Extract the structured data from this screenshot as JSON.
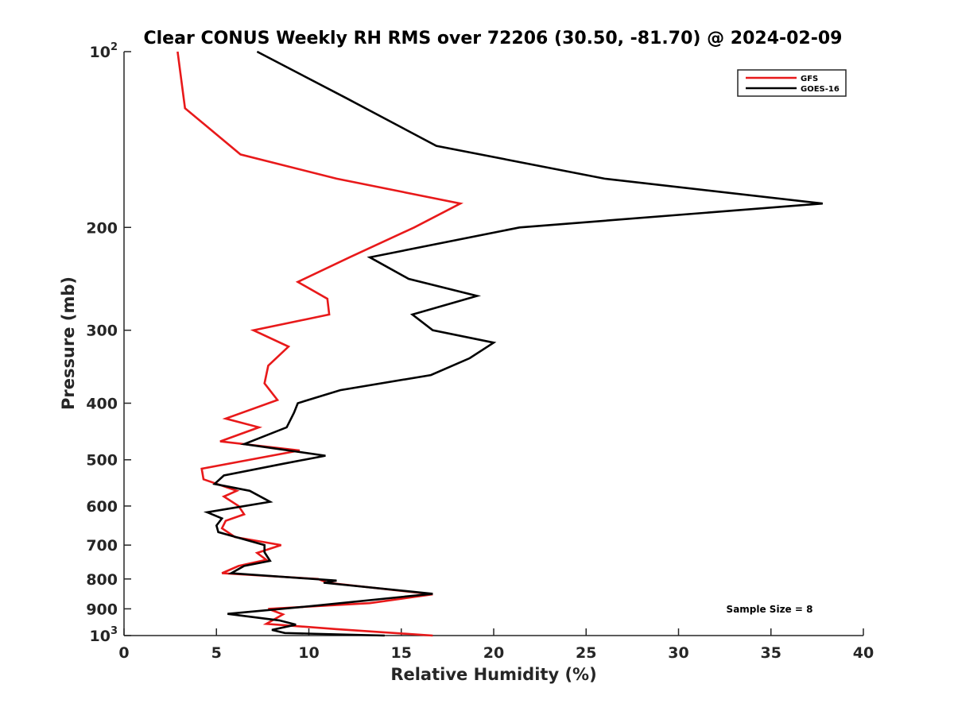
{
  "chart_data": {
    "type": "line",
    "title": "Clear CONUS Weekly RH RMS over 72206 (30.50, -81.70) @ 2024-02-09",
    "xlabel": "Relative Humidity (%)",
    "ylabel": "Pressure (mb)",
    "xlim": [
      0,
      40
    ],
    "ylim": [
      100,
      1000
    ],
    "y_scale": "log",
    "y_reversed": true,
    "x_ticks": [
      0,
      5,
      10,
      15,
      20,
      25,
      30,
      35,
      40
    ],
    "x_tick_labels": [
      "0",
      "5",
      "10",
      "15",
      "20",
      "25",
      "30",
      "35",
      "40"
    ],
    "y_ticks": [
      100,
      200,
      300,
      400,
      500,
      600,
      700,
      800,
      900,
      1000
    ],
    "y_tick_labels": [
      {
        "base": "10",
        "exp": "2"
      },
      {
        "base": "200",
        "exp": ""
      },
      {
        "base": "300",
        "exp": ""
      },
      {
        "base": "400",
        "exp": ""
      },
      {
        "base": "500",
        "exp": ""
      },
      {
        "base": "600",
        "exp": ""
      },
      {
        "base": "700",
        "exp": ""
      },
      {
        "base": "800",
        "exp": ""
      },
      {
        "base": "900",
        "exp": ""
      },
      {
        "base": "10",
        "exp": "3"
      }
    ],
    "legend_position": "top-right",
    "annotation": "Sample Size = 8",
    "series": [
      {
        "name": "GFS",
        "color": "#e8191a",
        "points": [
          [
            2.9,
            100
          ],
          [
            3.3,
            125
          ],
          [
            6.3,
            150
          ],
          [
            11.5,
            165
          ],
          [
            18.2,
            182
          ],
          [
            15.7,
            200
          ],
          [
            12.2,
            225
          ],
          [
            9.4,
            248
          ],
          [
            11.0,
            265
          ],
          [
            11.1,
            282
          ],
          [
            7.0,
            300
          ],
          [
            8.9,
            320
          ],
          [
            7.8,
            345
          ],
          [
            7.6,
            370
          ],
          [
            8.3,
            395
          ],
          [
            5.5,
            425
          ],
          [
            7.3,
            440
          ],
          [
            5.2,
            465
          ],
          [
            9.5,
            482
          ],
          [
            4.2,
            518
          ],
          [
            4.3,
            540
          ],
          [
            6.1,
            565
          ],
          [
            5.4,
            578
          ],
          [
            6.2,
            600
          ],
          [
            6.5,
            620
          ],
          [
            5.5,
            636
          ],
          [
            5.3,
            655
          ],
          [
            6.0,
            678
          ],
          [
            8.5,
            700
          ],
          [
            7.2,
            722
          ],
          [
            7.7,
            742
          ],
          [
            6.2,
            760
          ],
          [
            5.3,
            782
          ],
          [
            10.5,
            800
          ],
          [
            11.0,
            812
          ],
          [
            16.7,
            850
          ],
          [
            13.3,
            880
          ],
          [
            7.8,
            900
          ],
          [
            8.6,
            920
          ],
          [
            7.7,
            955
          ],
          [
            11.5,
            975
          ],
          [
            16.7,
            1000
          ]
        ]
      },
      {
        "name": "GOES-16",
        "color": "#000000",
        "points": [
          [
            7.2,
            100
          ],
          [
            12.0,
            120
          ],
          [
            16.9,
            145
          ],
          [
            26.0,
            165
          ],
          [
            37.8,
            182
          ],
          [
            21.4,
            200
          ],
          [
            13.3,
            225
          ],
          [
            15.4,
            245
          ],
          [
            19.1,
            262
          ],
          [
            15.6,
            282
          ],
          [
            16.7,
            300
          ],
          [
            20.0,
            315
          ],
          [
            18.7,
            335
          ],
          [
            16.6,
            358
          ],
          [
            11.7,
            380
          ],
          [
            9.4,
            400
          ],
          [
            9.2,
            415
          ],
          [
            8.8,
            440
          ],
          [
            6.5,
            470
          ],
          [
            10.9,
            492
          ],
          [
            8.6,
            508
          ],
          [
            5.4,
            532
          ],
          [
            4.9,
            550
          ],
          [
            6.8,
            565
          ],
          [
            7.9,
            590
          ],
          [
            4.5,
            615
          ],
          [
            5.3,
            630
          ],
          [
            5.0,
            648
          ],
          [
            5.1,
            665
          ],
          [
            7.6,
            700
          ],
          [
            7.6,
            720
          ],
          [
            7.9,
            745
          ],
          [
            6.5,
            760
          ],
          [
            5.8,
            782
          ],
          [
            11.5,
            805
          ],
          [
            10.8,
            812
          ],
          [
            16.7,
            848
          ],
          [
            10.5,
            888
          ],
          [
            5.6,
            918
          ],
          [
            8.4,
            942
          ],
          [
            9.3,
            958
          ],
          [
            8.0,
            978
          ],
          [
            8.7,
            990
          ],
          [
            14.1,
            1000
          ]
        ]
      }
    ]
  }
}
